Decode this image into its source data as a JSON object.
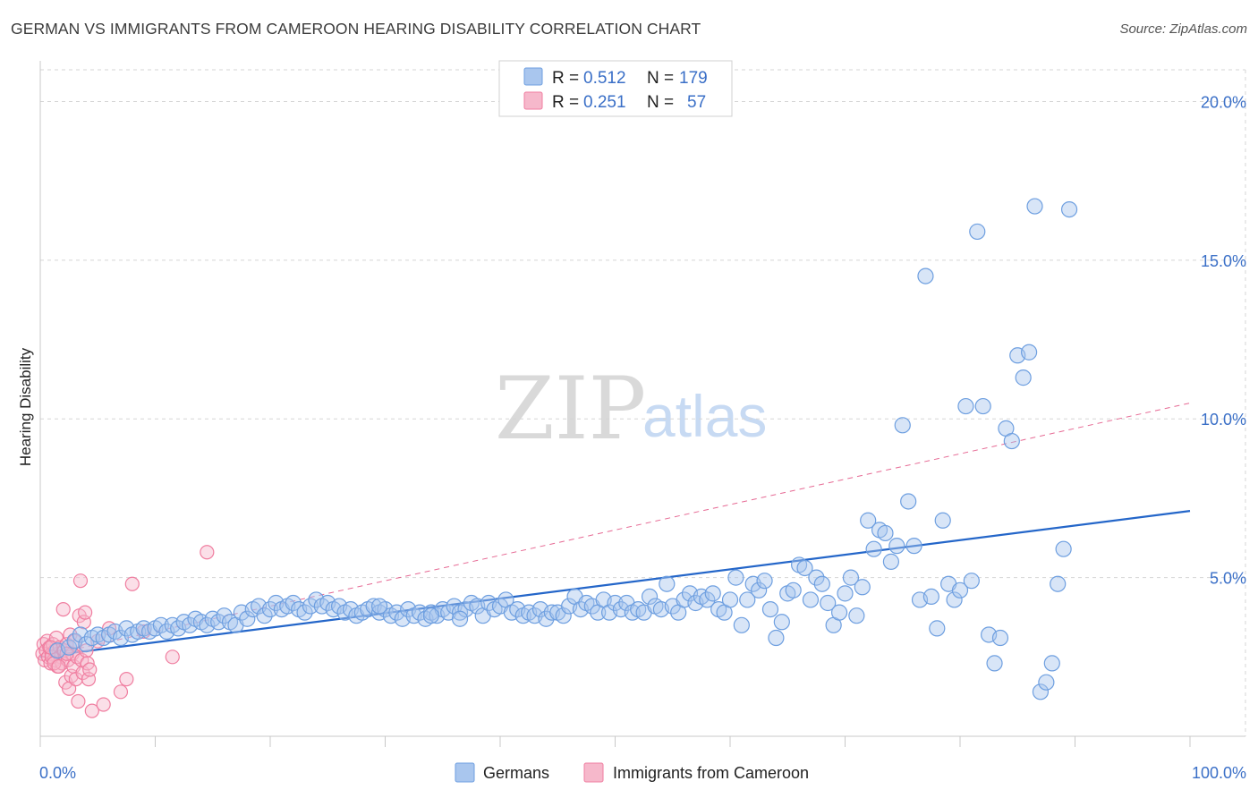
{
  "title": "GERMAN VS IMMIGRANTS FROM CAMEROON HEARING DISABILITY CORRELATION CHART",
  "source": "Source: ZipAtlas.com",
  "watermark": {
    "zip": "ZIP",
    "atlas": "atlas"
  },
  "colors": {
    "blue": "#6e9fe0",
    "blue_fill": "#a9c6ee",
    "blue_line": "#2466c9",
    "pink": "#f07ea0",
    "pink_fill": "#f6b8cb",
    "pink_line": "#e0457a",
    "grid": "#d5d5d5",
    "tick_text": "#3a6fc7"
  },
  "legend": {
    "rows": [
      {
        "r_label": "R =",
        "r_value": "0.512",
        "n_label": "N =",
        "n_value": "179"
      },
      {
        "r_label": "R =",
        "r_value": "0.251",
        "n_label": "N =",
        "n_value": "57"
      }
    ]
  },
  "bottom_legend": [
    "Germans",
    "Immigrants from Cameroon"
  ],
  "chart_data": {
    "type": "scatter",
    "title": "GERMAN VS IMMIGRANTS FROM CAMEROON HEARING DISABILITY CORRELATION CHART",
    "xlabel": "",
    "ylabel": "Hearing Disability",
    "xlim": [
      0,
      100
    ],
    "ylim": [
      0,
      21
    ],
    "x_tick_labels": [
      "0.0%",
      "100.0%"
    ],
    "y_ticks": [
      5,
      10,
      15,
      20
    ],
    "y_tick_labels": [
      "5.0%",
      "10.0%",
      "15.0%",
      "20.0%"
    ],
    "grid": true,
    "legend_position": "top-center",
    "series": [
      {
        "name": "Germans",
        "r": 0.512,
        "n": 179,
        "trend": {
          "x0": 0,
          "y0": 2.5,
          "x1": 100,
          "y1": 7.1,
          "style": "solid"
        },
        "points": [
          [
            1.5,
            2.7
          ],
          [
            2.5,
            2.8
          ],
          [
            3.0,
            3.0
          ],
          [
            3.5,
            3.2
          ],
          [
            4.0,
            2.9
          ],
          [
            4.5,
            3.1
          ],
          [
            5.0,
            3.2
          ],
          [
            5.5,
            3.1
          ],
          [
            6.0,
            3.2
          ],
          [
            6.5,
            3.3
          ],
          [
            7.0,
            3.1
          ],
          [
            7.5,
            3.4
          ],
          [
            8.0,
            3.2
          ],
          [
            8.5,
            3.3
          ],
          [
            9.0,
            3.4
          ],
          [
            9.5,
            3.3
          ],
          [
            10.0,
            3.4
          ],
          [
            10.5,
            3.5
          ],
          [
            11.0,
            3.3
          ],
          [
            11.5,
            3.5
          ],
          [
            12.0,
            3.4
          ],
          [
            12.5,
            3.6
          ],
          [
            13.0,
            3.5
          ],
          [
            13.5,
            3.7
          ],
          [
            14.0,
            3.6
          ],
          [
            14.5,
            3.5
          ],
          [
            15.0,
            3.7
          ],
          [
            15.5,
            3.6
          ],
          [
            16.0,
            3.8
          ],
          [
            16.5,
            3.6
          ],
          [
            17.0,
            3.5
          ],
          [
            17.5,
            3.9
          ],
          [
            18.0,
            3.7
          ],
          [
            18.5,
            4.0
          ],
          [
            19.0,
            4.1
          ],
          [
            19.5,
            3.8
          ],
          [
            20.0,
            4.0
          ],
          [
            20.5,
            4.2
          ],
          [
            21.0,
            4.0
          ],
          [
            21.5,
            4.1
          ],
          [
            22.0,
            4.2
          ],
          [
            22.5,
            4.0
          ],
          [
            23.0,
            3.9
          ],
          [
            23.5,
            4.1
          ],
          [
            24.0,
            4.3
          ],
          [
            24.5,
            4.1
          ],
          [
            25.0,
            4.2
          ],
          [
            25.5,
            4.0
          ],
          [
            26.0,
            4.1
          ],
          [
            26.5,
            3.9
          ],
          [
            27.0,
            4.0
          ],
          [
            27.5,
            3.8
          ],
          [
            28.0,
            3.9
          ],
          [
            28.5,
            4.0
          ],
          [
            29.0,
            4.1
          ],
          [
            29.5,
            3.9
          ],
          [
            30.0,
            4.0
          ],
          [
            30.5,
            3.8
          ],
          [
            31.0,
            3.9
          ],
          [
            31.5,
            3.7
          ],
          [
            32.0,
            4.0
          ],
          [
            32.5,
            3.8
          ],
          [
            33.0,
            3.9
          ],
          [
            33.5,
            3.7
          ],
          [
            34.0,
            3.9
          ],
          [
            34.5,
            3.8
          ],
          [
            35.0,
            4.0
          ],
          [
            35.5,
            3.9
          ],
          [
            36.0,
            4.1
          ],
          [
            36.5,
            3.9
          ],
          [
            37.0,
            4.0
          ],
          [
            37.5,
            4.2
          ],
          [
            38.0,
            4.1
          ],
          [
            38.5,
            3.8
          ],
          [
            39.0,
            4.2
          ],
          [
            39.5,
            4.0
          ],
          [
            40.0,
            4.1
          ],
          [
            40.5,
            4.3
          ],
          [
            41.0,
            3.9
          ],
          [
            41.5,
            4.0
          ],
          [
            42.0,
            3.8
          ],
          [
            42.5,
            3.9
          ],
          [
            43.0,
            3.8
          ],
          [
            43.5,
            4.0
          ],
          [
            44.0,
            3.7
          ],
          [
            44.5,
            3.9
          ],
          [
            45.0,
            3.9
          ],
          [
            45.5,
            3.8
          ],
          [
            46.0,
            4.1
          ],
          [
            46.5,
            4.4
          ],
          [
            47.0,
            4.0
          ],
          [
            47.5,
            4.2
          ],
          [
            48.0,
            4.1
          ],
          [
            48.5,
            3.9
          ],
          [
            49.0,
            4.3
          ],
          [
            49.5,
            3.9
          ],
          [
            50.0,
            4.2
          ],
          [
            50.5,
            4.0
          ],
          [
            51.0,
            4.2
          ],
          [
            51.5,
            3.9
          ],
          [
            52.0,
            4.0
          ],
          [
            52.5,
            3.9
          ],
          [
            53.0,
            4.4
          ],
          [
            53.5,
            4.1
          ],
          [
            54.0,
            4.0
          ],
          [
            54.5,
            4.8
          ],
          [
            55.0,
            4.1
          ],
          [
            55.5,
            3.9
          ],
          [
            56.0,
            4.3
          ],
          [
            56.5,
            4.5
          ],
          [
            57.0,
            4.2
          ],
          [
            57.5,
            4.4
          ],
          [
            58.0,
            4.3
          ],
          [
            58.5,
            4.5
          ],
          [
            59.0,
            4.0
          ],
          [
            59.5,
            3.9
          ],
          [
            60.0,
            4.3
          ],
          [
            60.5,
            5.0
          ],
          [
            61.0,
            3.5
          ],
          [
            61.5,
            4.3
          ],
          [
            62.0,
            4.8
          ],
          [
            62.5,
            4.6
          ],
          [
            63.0,
            4.9
          ],
          [
            63.5,
            4.0
          ],
          [
            64.0,
            3.1
          ],
          [
            64.5,
            3.6
          ],
          [
            65.0,
            4.5
          ],
          [
            65.5,
            4.6
          ],
          [
            66.0,
            5.4
          ],
          [
            66.5,
            5.3
          ],
          [
            67.0,
            4.3
          ],
          [
            67.5,
            5.0
          ],
          [
            68.0,
            4.8
          ],
          [
            68.5,
            4.2
          ],
          [
            69.0,
            3.5
          ],
          [
            69.5,
            3.9
          ],
          [
            70.0,
            4.5
          ],
          [
            70.5,
            5.0
          ],
          [
            71.0,
            3.8
          ],
          [
            71.5,
            4.7
          ],
          [
            72.0,
            6.8
          ],
          [
            72.5,
            5.9
          ],
          [
            73.0,
            6.5
          ],
          [
            73.5,
            6.4
          ],
          [
            74.0,
            5.5
          ],
          [
            74.5,
            6.0
          ],
          [
            75.0,
            9.8
          ],
          [
            75.5,
            7.4
          ],
          [
            76.0,
            6.0
          ],
          [
            76.5,
            4.3
          ],
          [
            77.0,
            14.5
          ],
          [
            77.5,
            4.4
          ],
          [
            78.0,
            3.4
          ],
          [
            78.5,
            6.8
          ],
          [
            79.0,
            4.8
          ],
          [
            79.5,
            4.3
          ],
          [
            80.0,
            4.6
          ],
          [
            80.5,
            10.4
          ],
          [
            81.0,
            4.9
          ],
          [
            81.5,
            15.9
          ],
          [
            82.0,
            10.4
          ],
          [
            82.5,
            3.2
          ],
          [
            83.0,
            2.3
          ],
          [
            83.5,
            3.1
          ],
          [
            84.0,
            9.7
          ],
          [
            84.5,
            9.3
          ],
          [
            85.0,
            12.0
          ],
          [
            85.5,
            11.3
          ],
          [
            86.0,
            12.1
          ],
          [
            86.5,
            16.7
          ],
          [
            87.0,
            1.4
          ],
          [
            87.5,
            1.7
          ],
          [
            88.0,
            2.3
          ],
          [
            88.5,
            4.8
          ],
          [
            89.0,
            5.9
          ],
          [
            89.5,
            16.6
          ],
          [
            34.0,
            3.8
          ],
          [
            36.5,
            3.7
          ],
          [
            29.5,
            4.1
          ]
        ]
      },
      {
        "name": "Immigrants from Cameroon",
        "r": 0.251,
        "n": 57,
        "trend": {
          "x0": 0,
          "y0": 2.5,
          "x1": 100,
          "y1": 10.5,
          "style": "dashed"
        },
        "points": [
          [
            0.2,
            2.6
          ],
          [
            0.3,
            2.9
          ],
          [
            0.4,
            2.4
          ],
          [
            0.5,
            2.7
          ],
          [
            0.6,
            3.0
          ],
          [
            0.7,
            2.5
          ],
          [
            0.8,
            2.8
          ],
          [
            0.9,
            2.3
          ],
          [
            1.0,
            2.6
          ],
          [
            1.1,
            2.9
          ],
          [
            1.2,
            2.4
          ],
          [
            1.3,
            2.7
          ],
          [
            1.4,
            3.1
          ],
          [
            1.5,
            2.2
          ],
          [
            1.6,
            2.6
          ],
          [
            1.7,
            2.8
          ],
          [
            1.8,
            2.5
          ],
          [
            1.9,
            2.3
          ],
          [
            2.0,
            4.0
          ],
          [
            2.1,
            2.7
          ],
          [
            2.2,
            1.7
          ],
          [
            2.3,
            2.9
          ],
          [
            2.4,
            2.4
          ],
          [
            2.5,
            1.5
          ],
          [
            2.6,
            3.2
          ],
          [
            2.7,
            1.9
          ],
          [
            2.8,
            2.6
          ],
          [
            2.9,
            2.2
          ],
          [
            3.0,
            3.0
          ],
          [
            3.1,
            1.8
          ],
          [
            3.2,
            2.5
          ],
          [
            3.3,
            1.1
          ],
          [
            3.4,
            3.8
          ],
          [
            3.5,
            4.9
          ],
          [
            3.6,
            2.4
          ],
          [
            3.7,
            2.0
          ],
          [
            3.8,
            3.6
          ],
          [
            3.9,
            3.9
          ],
          [
            4.0,
            2.7
          ],
          [
            4.1,
            2.3
          ],
          [
            4.2,
            1.8
          ],
          [
            4.3,
            2.1
          ],
          [
            4.5,
            0.8
          ],
          [
            5.0,
            3.0
          ],
          [
            5.5,
            1.0
          ],
          [
            6.0,
            3.4
          ],
          [
            7.0,
            1.4
          ],
          [
            7.5,
            1.8
          ],
          [
            8.0,
            4.8
          ],
          [
            9.0,
            3.3
          ],
          [
            11.5,
            2.5
          ],
          [
            14.5,
            5.8
          ],
          [
            1.0,
            2.5
          ],
          [
            1.2,
            2.3
          ],
          [
            0.9,
            2.8
          ],
          [
            1.6,
            2.2
          ],
          [
            2.3,
            2.6
          ]
        ]
      }
    ]
  }
}
